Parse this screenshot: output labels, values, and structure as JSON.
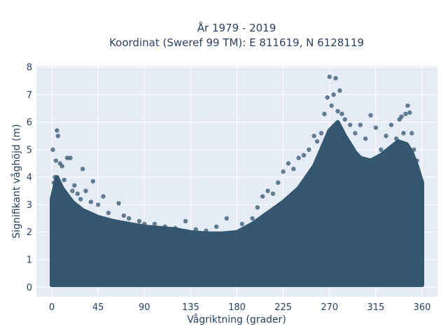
{
  "chart_data": {
    "type": "scatter",
    "title_lines": [
      "År 1979 - 2019",
      "Koordinat (Sweref 99 TM): E 811619, N 6128119"
    ],
    "xlabel": "Vågriktning (grader)",
    "ylabel": "Signifikant våghöjd (m)",
    "xlim": [
      -15,
      375
    ],
    "ylim": [
      -0.35,
      8.05
    ],
    "xticks": [
      0,
      45,
      90,
      135,
      180,
      225,
      270,
      315,
      360
    ],
    "yticks": [
      0,
      1,
      2,
      3,
      4,
      5,
      6,
      7,
      8
    ],
    "grid": true,
    "legend": "none",
    "colors": {
      "marker": "#34566e",
      "plot_bg": "#e5ecf6",
      "grid": "#ffffff",
      "text": "#2a3f5f"
    },
    "marker_opacity": 0.75,
    "upper_envelope": {
      "x": [
        0,
        5,
        10,
        20,
        30,
        45,
        60,
        75,
        90,
        105,
        120,
        135,
        150,
        165,
        180,
        195,
        210,
        225,
        240,
        255,
        262,
        270,
        278,
        285,
        295,
        300,
        310,
        320,
        330,
        337,
        345,
        350,
        355,
        360
      ],
      "y": [
        3.2,
        4.0,
        3.6,
        3.1,
        2.8,
        2.55,
        2.4,
        2.3,
        2.2,
        2.15,
        2.1,
        2.0,
        1.95,
        1.95,
        2.0,
        2.3,
        2.7,
        3.1,
        3.6,
        4.4,
        5.0,
        5.7,
        6.0,
        5.5,
        4.9,
        4.7,
        4.6,
        4.8,
        5.1,
        5.3,
        5.2,
        4.9,
        4.4,
        3.8
      ]
    },
    "outlier_points": {
      "x": [
        1,
        2,
        3,
        4,
        5,
        6,
        8,
        10,
        12,
        15,
        18,
        20,
        22,
        25,
        28,
        30,
        33,
        38,
        40,
        45,
        50,
        55,
        60,
        65,
        70,
        75,
        85,
        90,
        100,
        110,
        120,
        130,
        140,
        150,
        160,
        170,
        185,
        195,
        200,
        205,
        210,
        215,
        220,
        225,
        230,
        235,
        240,
        245,
        250,
        255,
        258,
        262,
        265,
        268,
        270,
        272,
        274,
        276,
        278,
        280,
        282,
        285,
        290,
        295,
        300,
        305,
        310,
        315,
        320,
        325,
        330,
        335,
        338,
        340,
        342,
        344,
        346,
        348,
        350,
        352,
        355
      ],
      "y": [
        5.0,
        3.8,
        4.0,
        4.6,
        5.7,
        5.5,
        4.5,
        4.4,
        3.9,
        4.7,
        4.7,
        3.5,
        3.7,
        3.4,
        3.2,
        4.3,
        3.5,
        3.1,
        3.85,
        3.0,
        3.3,
        2.7,
        2.4,
        3.05,
        2.6,
        2.5,
        2.4,
        2.3,
        2.3,
        2.2,
        2.15,
        2.4,
        2.1,
        2.05,
        2.2,
        2.5,
        2.3,
        2.5,
        2.9,
        3.3,
        3.5,
        3.4,
        3.8,
        4.2,
        4.5,
        4.3,
        4.7,
        4.8,
        5.0,
        5.5,
        5.3,
        5.6,
        6.3,
        6.9,
        7.65,
        6.6,
        7.0,
        7.6,
        6.4,
        7.15,
        6.3,
        6.1,
        5.9,
        5.6,
        5.9,
        5.4,
        6.25,
        5.8,
        5.0,
        5.5,
        5.9,
        5.4,
        6.1,
        6.2,
        5.6,
        6.3,
        6.6,
        6.35,
        5.6,
        5.0,
        4.6
      ]
    }
  }
}
